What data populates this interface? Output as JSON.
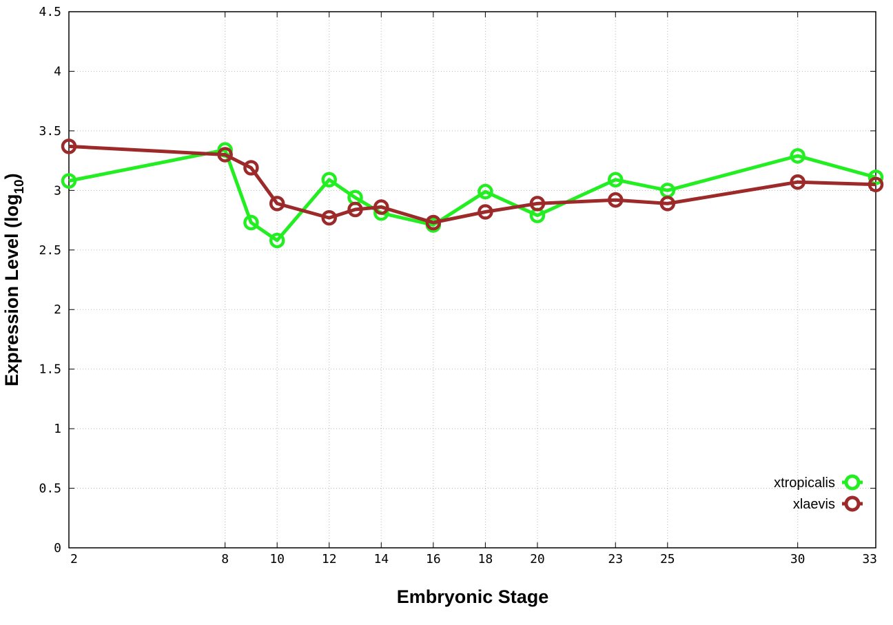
{
  "chart_data": {
    "type": "line",
    "xlabel": "Embryonic Stage",
    "ylabel_main": "Expression Level (log",
    "ylabel_sub": "10",
    "ylabel_close": ")",
    "x": [
      2,
      8,
      9,
      10,
      12,
      13,
      14,
      16,
      18,
      20,
      23,
      25,
      30,
      33
    ],
    "x_tick_labels": [
      "2",
      "8",
      "10",
      "12",
      "14",
      "16",
      "18",
      "20",
      "23",
      "25",
      "30",
      "33"
    ],
    "x_tick_values": [
      2,
      8,
      10,
      12,
      14,
      16,
      18,
      20,
      23,
      25,
      30,
      33
    ],
    "y_tick_labels": [
      "0",
      "0.5",
      "1",
      "1.5",
      "2",
      "2.5",
      "3",
      "3.5",
      "4",
      "4.5"
    ],
    "y_tick_values": [
      0,
      0.5,
      1,
      1.5,
      2,
      2.5,
      3,
      3.5,
      4,
      4.5
    ],
    "xlim": [
      2,
      33
    ],
    "ylim": [
      0,
      4.5
    ],
    "grid": true,
    "legend_position": "bottom-right",
    "series": [
      {
        "name": "xtropicalis",
        "color": "#22ee22",
        "values": [
          3.08,
          3.34,
          2.73,
          2.58,
          3.09,
          2.94,
          2.81,
          2.71,
          2.99,
          2.79,
          3.09,
          3.0,
          3.29,
          3.11
        ]
      },
      {
        "name": "xlaevis",
        "color": "#9c2a2a",
        "values": [
          3.37,
          3.3,
          3.19,
          2.89,
          2.77,
          2.84,
          2.86,
          2.73,
          2.82,
          2.89,
          2.92,
          2.89,
          3.07,
          3.05
        ]
      }
    ]
  }
}
